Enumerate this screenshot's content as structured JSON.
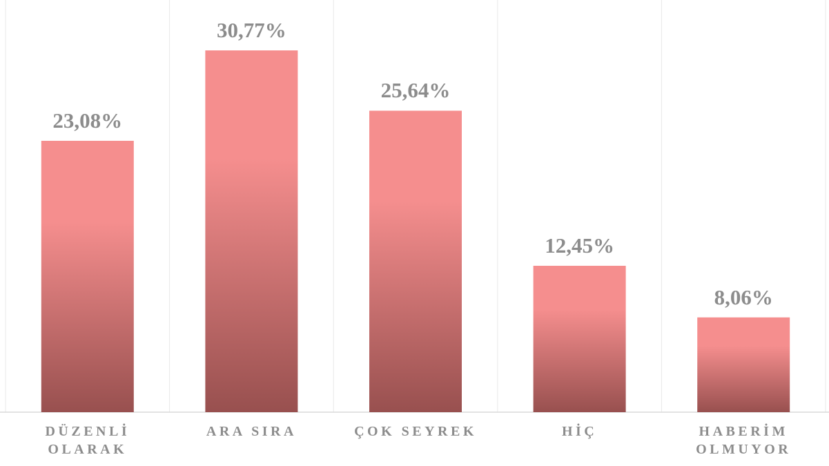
{
  "chart_data": {
    "type": "bar",
    "categories": [
      "DÜZENLİ OLARAK",
      "ARA SIRA",
      "ÇOK SEYREK",
      "HİÇ",
      "HABERİM OLMUYOR"
    ],
    "values": [
      23.08,
      30.77,
      25.64,
      12.45,
      8.06
    ],
    "value_labels": [
      "23,08%",
      "30,77%",
      "25,64%",
      "12,45%",
      "8,06%"
    ],
    "gradient": [
      "#f58e8e",
      "#98504f"
    ],
    "grid": true
  }
}
